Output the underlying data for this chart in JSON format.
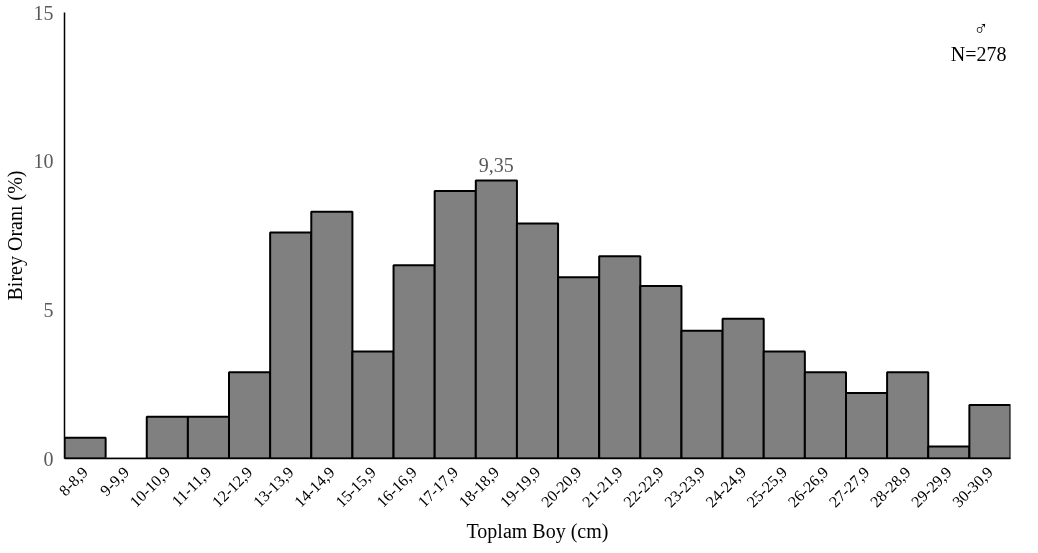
{
  "chart_data": {
    "type": "bar",
    "categories": [
      "8-8,9",
      "9-9,9",
      "10-10,9",
      "11-11,9",
      "12-12,9",
      "13-13,9",
      "14-14,9",
      "15-15,9",
      "16-16,9",
      "17-17,9",
      "18-18,9",
      "19-19,9",
      "20-20,9",
      "21-21,9",
      "22-22,9",
      "23-23,9",
      "24-24,9",
      "25-25,9",
      "26-26,9",
      "27-27,9",
      "28-28,9",
      "29-29,9",
      "30-30,9"
    ],
    "values": [
      0.7,
      0,
      1.4,
      1.4,
      2.9,
      7.6,
      8.3,
      3.6,
      6.5,
      9.0,
      9.35,
      7.9,
      6.1,
      6.8,
      5.8,
      4.3,
      4.7,
      3.6,
      2.9,
      2.2,
      2.9,
      0.4,
      1.8
    ],
    "value_labels": [
      null,
      null,
      null,
      null,
      null,
      null,
      null,
      null,
      null,
      null,
      "9,35",
      null,
      null,
      null,
      null,
      null,
      null,
      null,
      null,
      null,
      null,
      null,
      null
    ],
    "color": "#808080",
    "xlabel": "Toplam Boy (cm)",
    "ylabel": "Birey Oranı (%)",
    "ylim": [
      0,
      15
    ],
    "yticks": [
      0,
      5,
      10,
      15
    ],
    "annotations": [
      "♂",
      "N=278"
    ],
    "grid": false
  }
}
